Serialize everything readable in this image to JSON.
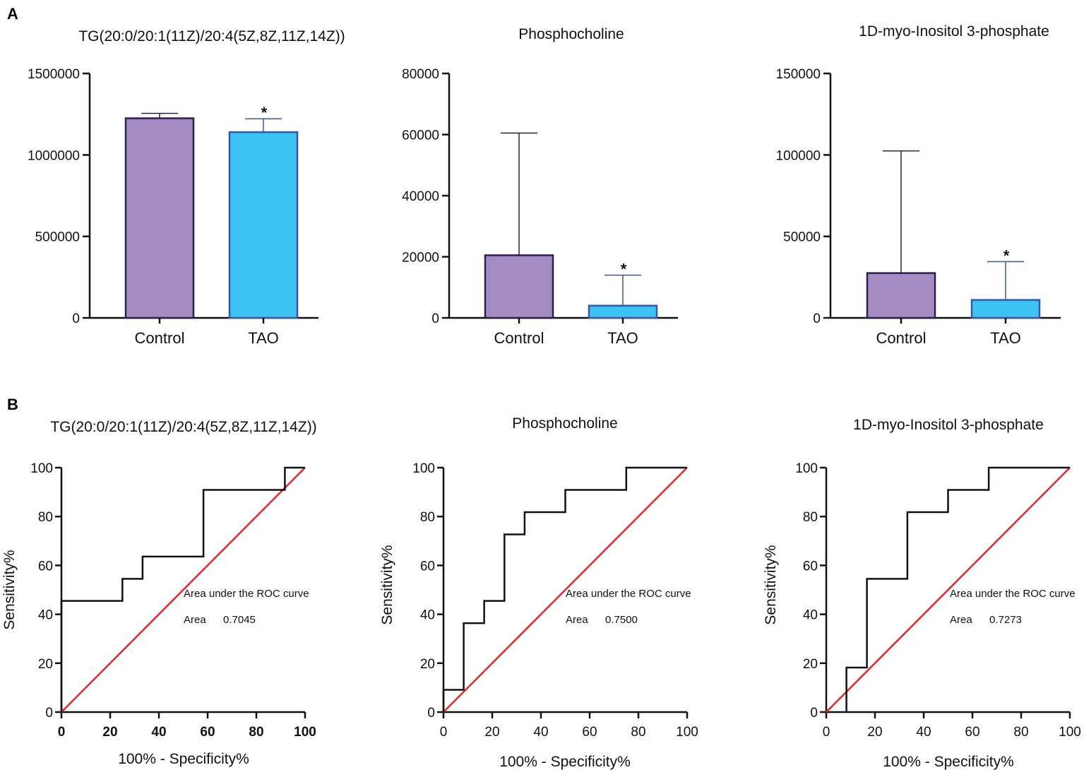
{
  "panel_labels": [
    "A",
    "B"
  ],
  "chart_data": [
    {
      "type": "bar",
      "title": "TG(20:0/20:1(11Z)/20:4(5Z,8Z,11Z,14Z))",
      "categories": [
        "Control",
        "TAO"
      ],
      "values": [
        1225000,
        1140000
      ],
      "error_upper": [
        1255000,
        1222000
      ],
      "significance": [
        "",
        "*"
      ],
      "ylim": [
        0,
        1500000
      ],
      "yticks": [
        0,
        500000,
        1000000,
        1500000
      ],
      "ytick_labels": [
        "0",
        "500000",
        "1000000",
        "1500000"
      ],
      "colors": [
        "#a48bc1",
        "#3bc4f3"
      ],
      "edge_colors": [
        "#2a1f4e",
        "#3a55a4"
      ]
    },
    {
      "type": "bar",
      "title": "Phosphocholine",
      "categories": [
        "Control",
        "TAO"
      ],
      "values": [
        20500,
        4000
      ],
      "error_upper": [
        60500,
        14000
      ],
      "significance": [
        "",
        "*"
      ],
      "ylim": [
        0,
        80000
      ],
      "yticks": [
        0,
        20000,
        40000,
        60000,
        80000
      ],
      "ytick_labels": [
        "0",
        "20000",
        "40000",
        "60000",
        "80000"
      ],
      "colors": [
        "#a48bc1",
        "#3bc4f3"
      ],
      "edge_colors": [
        "#2a1f4e",
        "#3a55a4"
      ]
    },
    {
      "type": "bar",
      "title": "1D-myo-Inositol 3-phosphate",
      "categories": [
        "Control",
        "TAO"
      ],
      "values": [
        27500,
        11000
      ],
      "error_upper": [
        102500,
        34500
      ],
      "significance": [
        "",
        "*"
      ],
      "ylim": [
        0,
        150000
      ],
      "yticks": [
        0,
        50000,
        100000,
        150000
      ],
      "ytick_labels": [
        "0",
        "50000",
        "100000",
        "150000"
      ],
      "colors": [
        "#a48bc1",
        "#3bc4f3"
      ],
      "edge_colors": [
        "#2a1f4e",
        "#3a55a4"
      ]
    },
    {
      "type": "line",
      "title": "TG(20:0/20:1(11Z)/20:4(5Z,8Z,11Z,14Z))",
      "xlabel": "100% - Specificity%",
      "ylabel": "Sensitivity%",
      "xlim": [
        0,
        100
      ],
      "ylim": [
        0,
        100
      ],
      "ticks": [
        0,
        20,
        40,
        60,
        80,
        100
      ],
      "series": [
        {
          "name": "ROC",
          "x": [
            0,
            0,
            25,
            25,
            33.3,
            33.3,
            58.3,
            58.3,
            91.7,
            91.7,
            100
          ],
          "y": [
            0,
            45.5,
            45.5,
            54.5,
            54.5,
            63.6,
            63.6,
            90.9,
            90.9,
            100,
            100
          ]
        },
        {
          "name": "Reference",
          "x": [
            0,
            100
          ],
          "y": [
            0,
            100
          ]
        }
      ],
      "annotation_title": "Area under the ROC curve",
      "area_label": "Area",
      "area_value": "0.7045",
      "bold_ticks": true
    },
    {
      "type": "line",
      "title": "Phosphocholine",
      "xlabel": "100% - Specificity%",
      "ylabel": "Sensitivity%",
      "xlim": [
        0,
        100
      ],
      "ylim": [
        0,
        100
      ],
      "ticks": [
        0,
        20,
        40,
        60,
        80,
        100
      ],
      "series": [
        {
          "name": "ROC",
          "x": [
            0,
            0,
            8.3,
            8.3,
            16.7,
            16.7,
            25,
            25,
            33.3,
            33.3,
            50,
            50,
            75,
            75,
            100
          ],
          "y": [
            0,
            9.1,
            9.1,
            36.4,
            36.4,
            45.5,
            45.5,
            72.7,
            72.7,
            81.8,
            81.8,
            90.9,
            90.9,
            100,
            100
          ]
        },
        {
          "name": "Reference",
          "x": [
            0,
            100
          ],
          "y": [
            0,
            100
          ]
        }
      ],
      "annotation_title": "Area under the ROC curve",
      "area_label": "Area",
      "area_value": "0.7500",
      "bold_ticks": false
    },
    {
      "type": "line",
      "title": "1D-myo-Inositol 3-phosphate",
      "xlabel": "100% - Specificity%",
      "ylabel": "Sensitivity%",
      "xlim": [
        0,
        100
      ],
      "ylim": [
        0,
        100
      ],
      "ticks": [
        0,
        20,
        40,
        60,
        80,
        100
      ],
      "series": [
        {
          "name": "ROC",
          "x": [
            8.3,
            8.3,
            16.7,
            16.7,
            33.3,
            33.3,
            50,
            50,
            66.7,
            66.7,
            100
          ],
          "y": [
            0,
            18.2,
            18.2,
            54.5,
            54.5,
            81.8,
            81.8,
            90.9,
            90.9,
            100,
            100
          ]
        },
        {
          "name": "Reference",
          "x": [
            0,
            100
          ],
          "y": [
            0,
            100
          ]
        }
      ],
      "annotation_title": "Area under the ROC curve",
      "area_label": "Area",
      "area_value": "0.7273",
      "bold_ticks": false
    }
  ]
}
